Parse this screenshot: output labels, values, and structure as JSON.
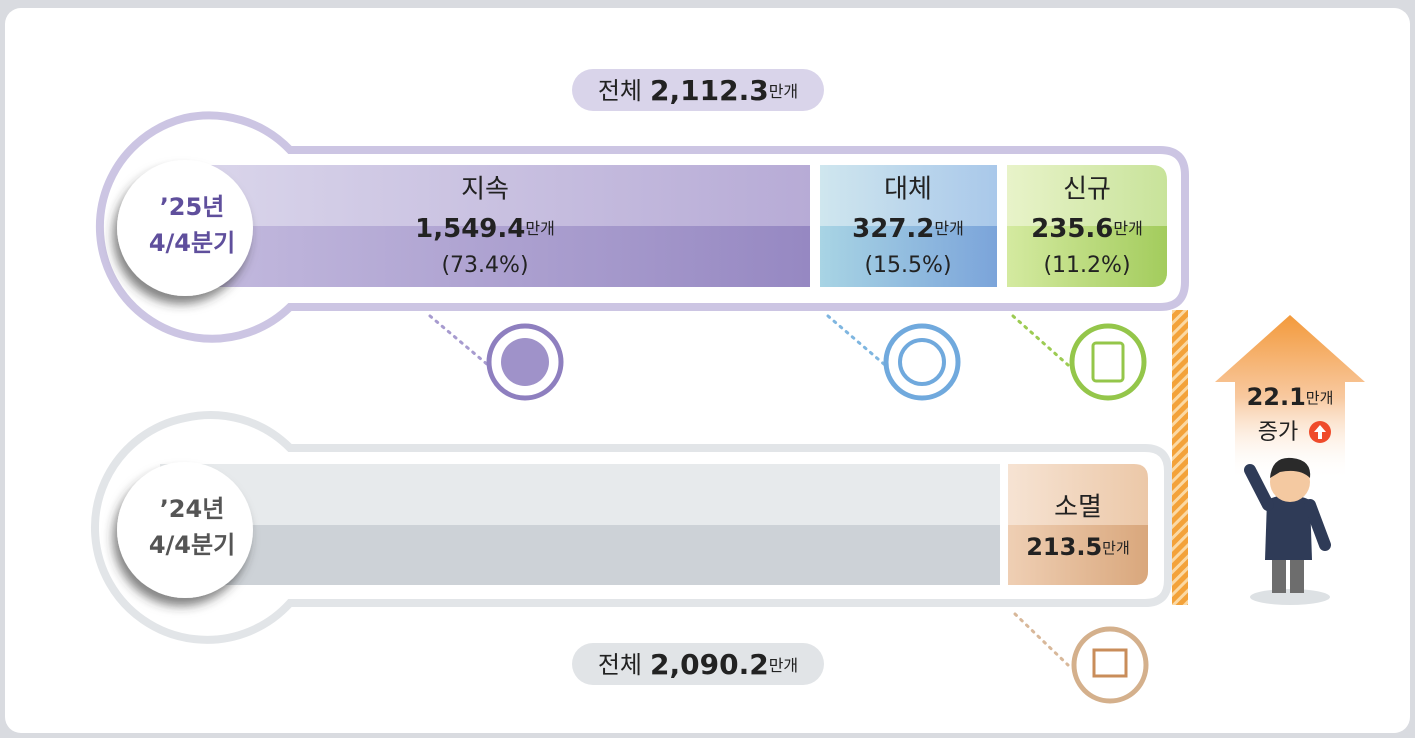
{
  "top_total": {
    "label": "전체",
    "value": "2,112.3",
    "unit": "만개"
  },
  "rows": [
    {
      "period": [
        "’25년",
        "4/4분기"
      ],
      "segments": [
        {
          "name": "지속",
          "value": "1,549.4",
          "unit": "만개",
          "share": "(73.4%)"
        },
        {
          "name": "대체",
          "value": "327.2",
          "unit": "만개",
          "share": "(15.5%)"
        },
        {
          "name": "신규",
          "value": "235.6",
          "unit": "만개",
          "share": "(11.2%)"
        }
      ]
    },
    {
      "period": [
        "’24년",
        "4/4분기"
      ],
      "segments": [
        {
          "name": "소멸",
          "value": "213.5",
          "unit": "만개"
        }
      ]
    }
  ],
  "bottom_total": {
    "label": "전체",
    "value": "2,090.2",
    "unit": "만개"
  },
  "increase": {
    "value": "22.1",
    "unit": "만개",
    "label": "증가"
  }
}
